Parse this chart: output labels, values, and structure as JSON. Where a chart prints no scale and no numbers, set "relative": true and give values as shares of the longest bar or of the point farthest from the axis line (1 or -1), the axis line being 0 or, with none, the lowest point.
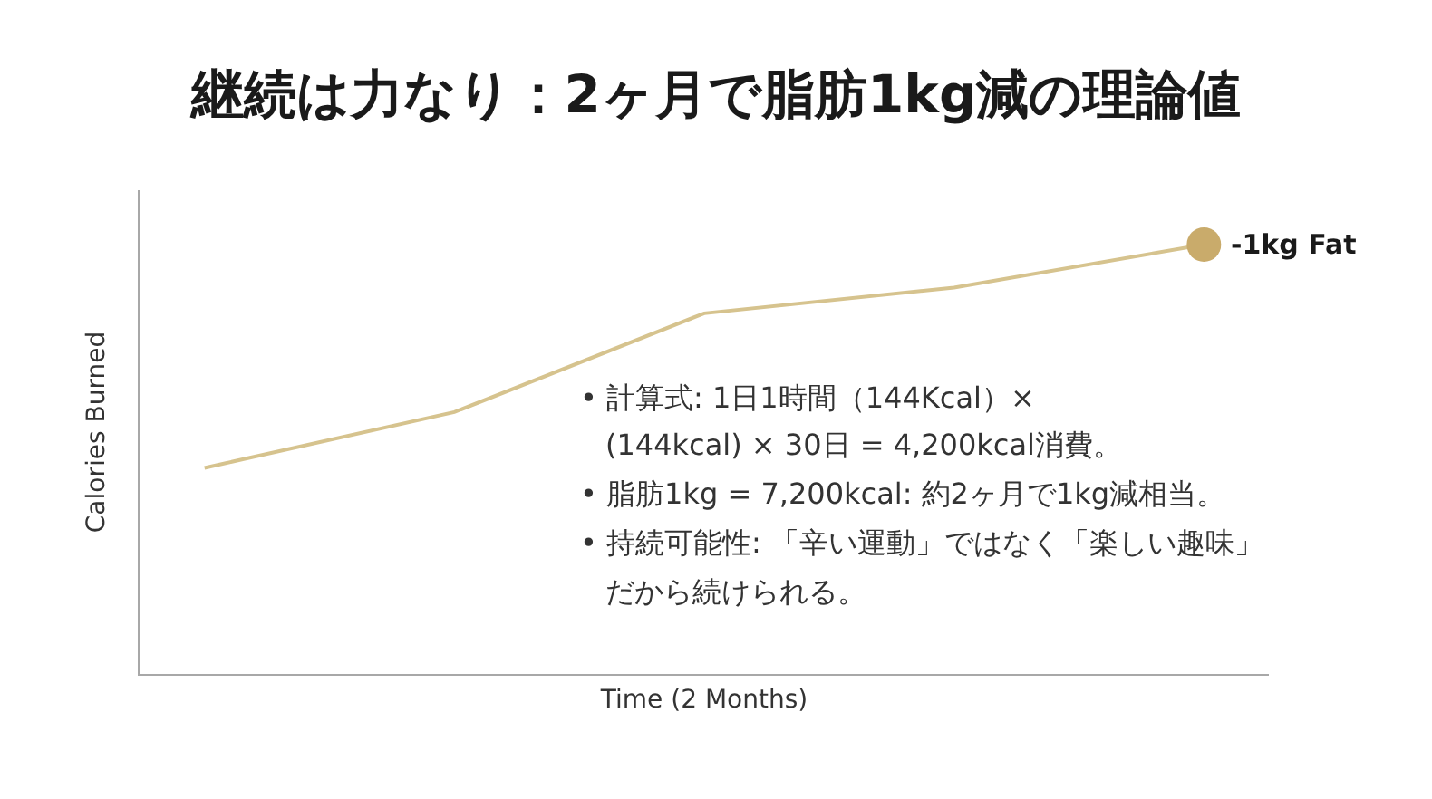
{
  "chart_data": {
    "type": "line",
    "title": "継続は力なり：2ヶ月で脂肪1kg減の理論値",
    "xlabel": "Time (2 Months)",
    "ylabel": "Calories Burned",
    "categories": [
      null,
      null,
      null,
      null,
      null
    ],
    "relative": true,
    "series": [
      {
        "values": [
          0.48,
          0.61,
          0.84,
          0.9,
          1
        ],
        "color": "#d6c38e",
        "marker": "none"
      },
      {
        "values": [
          null,
          null,
          null,
          null,
          1
        ],
        "color": "#c9ab6b",
        "marker": "circle"
      }
    ],
    "annotations": [
      "-1kg Fat",
      "• 計算式: 1日1時間（144Kcal）×\n(144kcal) × 30日 = 4,200kcal消費。",
      "• 脂肪1kg = 7,200kcal: 約2ヶ月で1kg減相当。",
      "• 持続可能性: 「辛い運動」ではなく「楽しい趣味」だから続けられる。"
    ],
    "tick_labels": false
  }
}
